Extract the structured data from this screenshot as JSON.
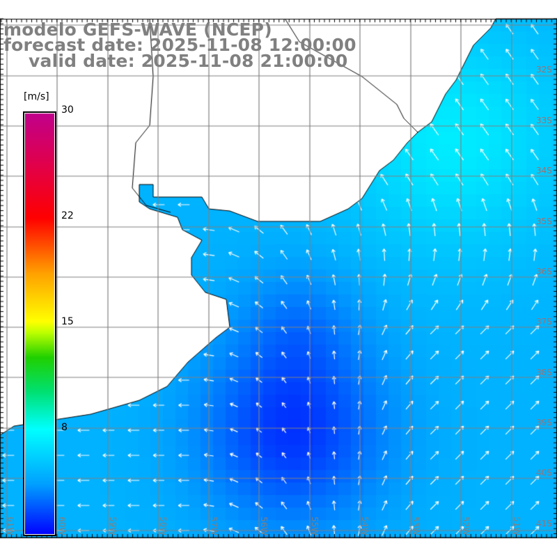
{
  "header": {
    "model": "modelo GEFS-WAVE (NCEP)",
    "forecast_date": "forecast date: 2025-11-08 12:00:00",
    "valid_date": "valid date: 2025-11-08 21:00:00"
  },
  "colorbar": {
    "unit": "[m/s]",
    "ticks": [
      {
        "label": "30",
        "value": 30
      },
      {
        "label": "22",
        "value": 22
      },
      {
        "label": "15",
        "value": 15
      },
      {
        "label": "8",
        "value": 8
      }
    ]
  },
  "axes": {
    "longitude_labels": [
      "61W",
      "60W",
      "59W",
      "58W",
      "57W",
      "56W",
      "55W",
      "54W",
      "53W",
      "52W",
      "51W"
    ],
    "latitude_labels": [
      "32S",
      "33S",
      "34S",
      "35S",
      "36S",
      "37S",
      "38S",
      "39S",
      "40S",
      "41S"
    ]
  },
  "colors": {
    "land": "#ffffff",
    "grid": "#808080",
    "coast": "#000000",
    "arrows": "#ffffff",
    "title": "#808080"
  }
}
